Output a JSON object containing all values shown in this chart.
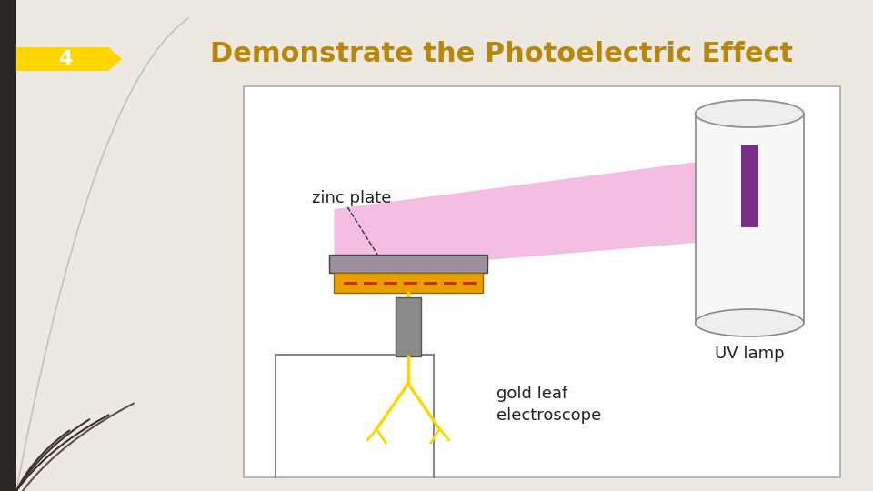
{
  "title": "Demonstrate the Photoelectric Effect",
  "title_color": "#B8860B",
  "badge_number": "4",
  "badge_bg": "#FFD700",
  "badge_text_color": "#FFFFFF",
  "bg_left_color": "#2A2520",
  "bg_main_color": "#EDE8E0",
  "diagram_bg": "#FFFFFF",
  "zinc_plate_color": "#9B8FA0",
  "electroscope_body_color": "#8A8A8A",
  "electroscope_leaf_color": "#FFD700",
  "orange_box_color": "#E8A000",
  "uv_bar_color": "#7B2D8B",
  "uv_beam_color": "#F0A8D8",
  "cylinder_body_color": "#F8F8F8",
  "cylinder_border": "#888888",
  "label_zinc": "zinc plate",
  "label_uv": "UV lamp",
  "label_electroscope": "gold leaf\nelectroscope",
  "diagram_box_color": "#AAAAAA",
  "title_fontsize": 22,
  "badge_fontsize": 16
}
